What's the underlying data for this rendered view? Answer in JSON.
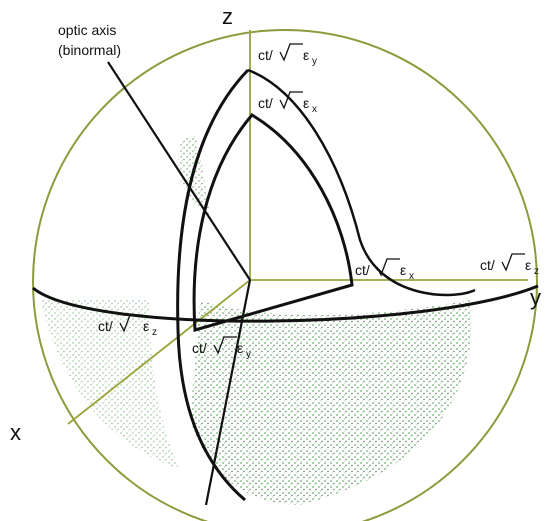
{
  "labels": {
    "optic_axis_line1": "optic axis",
    "optic_axis_line2": "(binormal)",
    "axis_z": "z",
    "axis_y": "y",
    "axis_x": "x",
    "ct": "ct/",
    "eps": "ε",
    "sub_x": "x",
    "sub_y": "y",
    "sub_z": "z"
  },
  "colors": {
    "ink": "#111111",
    "axis_line": "#9aa43a",
    "sphere_outline": "#8f9a3c",
    "shading": "#3f9a3f"
  }
}
